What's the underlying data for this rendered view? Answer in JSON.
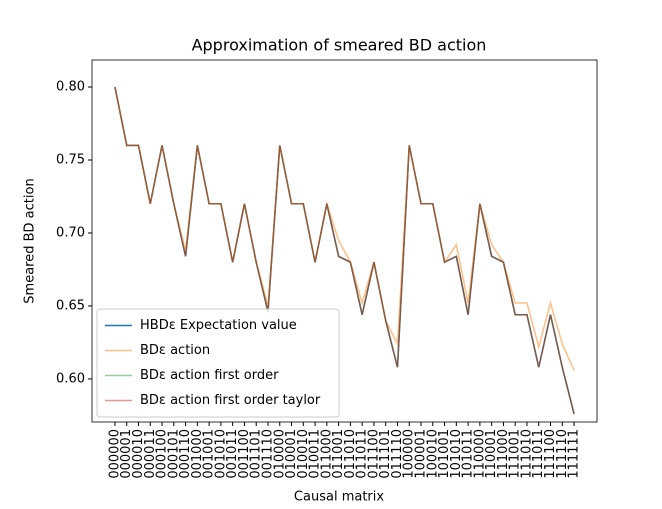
{
  "chart_data": {
    "type": "line",
    "title": "Approximation of smeared BD action",
    "x_label": "Causal matrix",
    "y_label": "Smeared BD action",
    "categories": [
      "000000",
      "000001",
      "000010",
      "000011",
      "000100",
      "000101",
      "000110",
      "001000",
      "001001",
      "001010",
      "001011",
      "001100",
      "001101",
      "001110",
      "010000",
      "010001",
      "010010",
      "010011",
      "011000",
      "011001",
      "011010",
      "011011",
      "011100",
      "011101",
      "011110",
      "100000",
      "100001",
      "100010",
      "101001",
      "101010",
      "101011",
      "110000",
      "110001",
      "111000",
      "111001",
      "111010",
      "111011",
      "111100",
      "111110",
      "111111"
    ],
    "series": [
      {
        "name": "HBDε Expectation value",
        "color": "#1f77b4",
        "opacity": 1,
        "values": [
          0.8,
          0.76,
          0.76,
          0.72,
          0.76,
          0.72,
          0.684,
          0.76,
          0.72,
          0.72,
          0.68,
          0.72,
          0.68,
          0.646,
          0.76,
          0.72,
          0.72,
          0.68,
          0.72,
          0.684,
          0.68,
          0.644,
          0.68,
          0.64,
          0.608,
          0.76,
          0.72,
          0.72,
          0.68,
          0.684,
          0.644,
          0.72,
          0.684,
          0.68,
          0.644,
          0.644,
          0.608,
          0.644,
          0.608,
          0.576
        ]
      },
      {
        "name": "BDε action",
        "color": "#ff7f0e",
        "opacity": 0.5,
        "values": [
          0.8,
          0.76,
          0.76,
          0.72,
          0.76,
          0.72,
          0.688,
          0.76,
          0.72,
          0.72,
          0.68,
          0.72,
          0.68,
          0.65,
          0.76,
          0.72,
          0.72,
          0.68,
          0.72,
          0.695,
          0.68,
          0.652,
          0.68,
          0.64,
          0.624,
          0.76,
          0.72,
          0.72,
          0.68,
          0.692,
          0.652,
          0.72,
          0.692,
          0.68,
          0.652,
          0.652,
          0.622,
          0.652,
          0.624,
          0.606
        ]
      },
      {
        "name": "BDε action first order",
        "color": "#2ca02c",
        "opacity": 0.5,
        "values": [
          0.8,
          0.76,
          0.76,
          0.72,
          0.76,
          0.72,
          0.684,
          0.76,
          0.72,
          0.72,
          0.68,
          0.72,
          0.68,
          0.646,
          0.76,
          0.72,
          0.72,
          0.68,
          0.72,
          0.684,
          0.68,
          0.644,
          0.68,
          0.64,
          0.608,
          0.76,
          0.72,
          0.72,
          0.68,
          0.684,
          0.644,
          0.72,
          0.684,
          0.68,
          0.644,
          0.644,
          0.608,
          0.644,
          0.608,
          0.576
        ]
      },
      {
        "name": "BDε action first order taylor",
        "color": "#d62728",
        "opacity": 0.5,
        "values": [
          0.8,
          0.76,
          0.76,
          0.72,
          0.76,
          0.72,
          0.684,
          0.76,
          0.72,
          0.72,
          0.68,
          0.72,
          0.68,
          0.646,
          0.76,
          0.72,
          0.72,
          0.68,
          0.72,
          0.684,
          0.68,
          0.644,
          0.68,
          0.64,
          0.608,
          0.76,
          0.72,
          0.72,
          0.68,
          0.684,
          0.644,
          0.72,
          0.684,
          0.68,
          0.644,
          0.644,
          0.608,
          0.644,
          0.608,
          0.576
        ]
      }
    ],
    "ylim": [
      0.5705,
      0.8185
    ],
    "yticks": [
      {
        "value": 0.6,
        "label": "0.60"
      },
      {
        "value": 0.65,
        "label": "0.65"
      },
      {
        "value": 0.7,
        "label": "0.70"
      },
      {
        "value": 0.75,
        "label": "0.75"
      },
      {
        "value": 0.8,
        "label": "0.80"
      }
    ],
    "legend": "lower left"
  }
}
